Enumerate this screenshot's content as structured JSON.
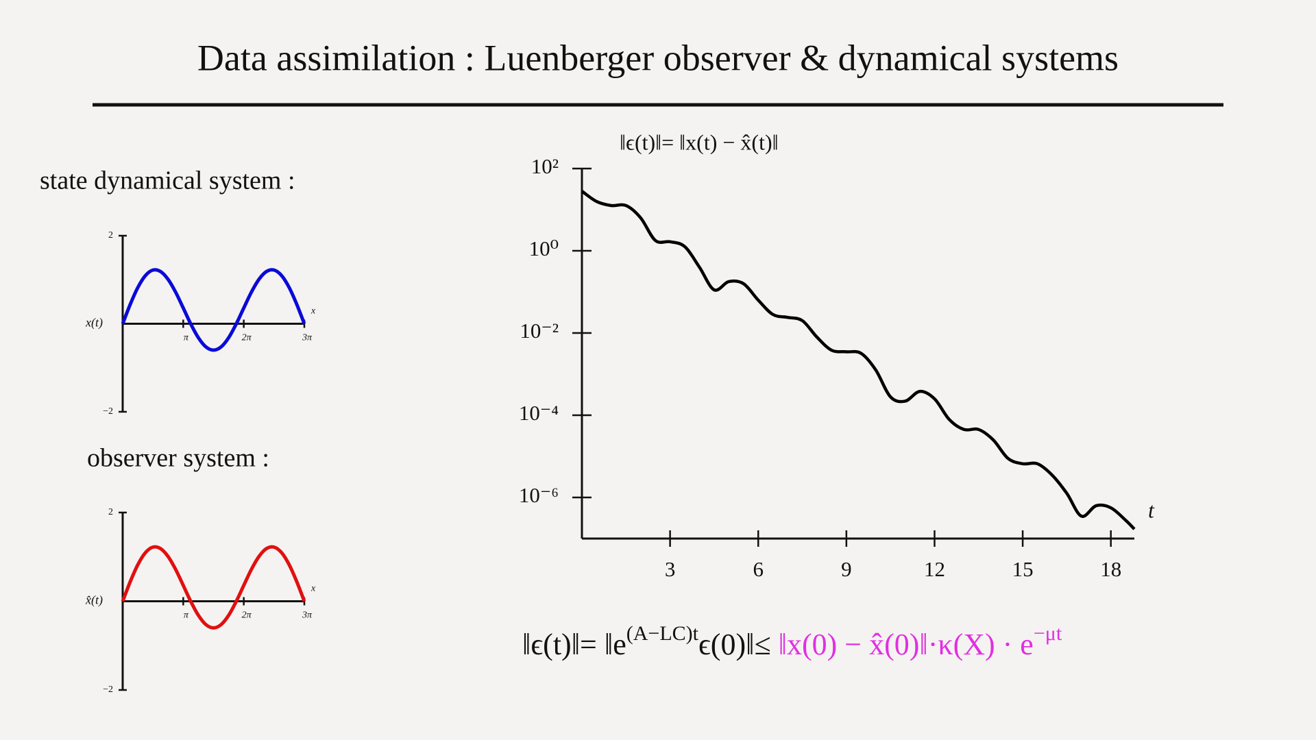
{
  "slide": {
    "title": "Data assimilation : Luenberger observer & dynamical systems",
    "state_label": "state dynamical system :",
    "observer_label": "observer system :",
    "formula": {
      "lhs": "‖ϵ(t)‖= ‖e",
      "lhs_exp": "(A−LC)t",
      "mid": "ϵ(0)‖≤ ",
      "bound": "‖x(0) − x̂(0)‖·κ(X) · e",
      "bound_exp": "−μt"
    }
  },
  "chart_data": [
    {
      "type": "line",
      "xlabel": "x",
      "ylabel": "x(t)",
      "color": "#0a0ad8",
      "x": [
        0,
        0.393,
        0.785,
        1.178,
        1.571,
        1.963,
        2.356,
        2.749,
        3.142,
        3.534,
        3.927,
        4.32,
        4.712,
        5.105,
        5.498,
        5.89,
        6.283,
        6.676,
        7.069,
        7.461,
        7.854,
        8.247,
        8.639,
        9.032,
        9.425
      ],
      "values": [
        0,
        0.442,
        0.823,
        1.094,
        1.22,
        1.187,
        1.008,
        0.716,
        0.358,
        -0.006,
        -0.317,
        -0.527,
        -0.6,
        -0.527,
        -0.317,
        -0.006,
        0.358,
        0.716,
        1.008,
        1.187,
        1.22,
        1.094,
        0.823,
        0.442,
        0
      ],
      "xlim": [
        0,
        9.425
      ],
      "xticks": [
        {
          "value": 3.1416,
          "label": "π"
        },
        {
          "value": 6.2832,
          "label": "2π"
        },
        {
          "value": 9.4248,
          "label": "3π"
        }
      ],
      "ylim": [
        -2,
        2
      ],
      "yticks": [
        {
          "value": -2,
          "label": "−2"
        },
        2
      ]
    },
    {
      "type": "line",
      "xlabel": "x",
      "ylabel": "x̂(t)",
      "color": "#e01010",
      "x": [
        0,
        0.393,
        0.785,
        1.178,
        1.571,
        1.963,
        2.356,
        2.749,
        3.142,
        3.534,
        3.927,
        4.32,
        4.712,
        5.105,
        5.498,
        5.89,
        6.283,
        6.676,
        7.069,
        7.461,
        7.854,
        8.247,
        8.639,
        9.032,
        9.425
      ],
      "values": [
        0,
        0.442,
        0.823,
        1.094,
        1.22,
        1.187,
        1.008,
        0.716,
        0.358,
        -0.006,
        -0.317,
        -0.527,
        -0.6,
        -0.527,
        -0.317,
        -0.006,
        0.358,
        0.716,
        1.008,
        1.187,
        1.22,
        1.094,
        0.823,
        0.442,
        0
      ],
      "xlim": [
        0,
        9.425
      ],
      "xticks": [
        {
          "value": 3.1416,
          "label": "π"
        },
        {
          "value": 6.2832,
          "label": "2π"
        },
        {
          "value": 9.4248,
          "label": "3π"
        }
      ],
      "ylim": [
        -2,
        2
      ],
      "yticks": [
        {
          "value": -2,
          "label": "−2"
        },
        2
      ]
    },
    {
      "type": "line",
      "title": "‖ϵ(t)‖= ‖x(t) − x̂(t)‖",
      "xlabel": "t",
      "color": "#000000",
      "yscale": "log",
      "x": [
        0,
        0.5,
        1,
        1.5,
        2,
        2.5,
        3,
        3.5,
        4,
        4.5,
        5,
        5.5,
        6,
        6.5,
        7,
        7.5,
        8,
        8.5,
        9,
        9.5,
        10,
        10.5,
        11,
        11.5,
        12,
        12.5,
        13,
        13.5,
        14,
        14.5,
        15,
        15.5,
        16,
        16.5,
        17,
        17.5,
        18,
        18.5,
        18.8
      ],
      "values": [
        28.2,
        15.8,
        12.6,
        12.6,
        6.3,
        1.78,
        1.66,
        1.26,
        0.398,
        0.112,
        0.178,
        0.158,
        0.063,
        0.0282,
        0.024,
        0.02,
        0.0079,
        0.0038,
        0.0035,
        0.0032,
        0.00126,
        0.00028,
        0.00022,
        0.00038,
        0.00025,
        7.9e-05,
        4.5e-05,
        4.5e-05,
        2.5e-05,
        8.9e-06,
        6.6e-06,
        6.6e-06,
        3.5e-06,
        1.26e-06,
        3.5e-07,
        6.3e-07,
        5.6e-07,
        2.8e-07,
        1.7e-07
      ],
      "xlim": [
        0,
        18.8
      ],
      "xticks": [
        3,
        6,
        9,
        12,
        15,
        18
      ],
      "ylim": [
        1e-07,
        100
      ],
      "yticks": [
        {
          "value": 1e-06,
          "label": "10⁻⁶"
        },
        {
          "value": 0.0001,
          "label": "10⁻⁴"
        },
        {
          "value": 0.01,
          "label": "10⁻²"
        },
        {
          "value": 1,
          "label": "10⁰"
        },
        {
          "value": 100,
          "label": "10²"
        }
      ]
    }
  ]
}
